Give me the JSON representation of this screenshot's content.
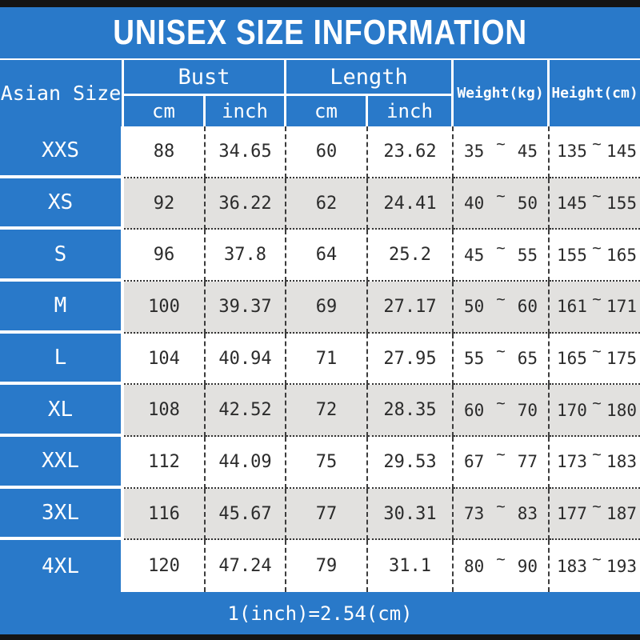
{
  "title": "UNISEX SIZE INFORMATION",
  "footer_note": "1(inch)=2.54(cm)",
  "colors": {
    "accent_blue": "#2979c9",
    "edge_bar_black": "#141414",
    "alt_row_gray": "#e2e1df",
    "text_dark": "#2b2b2b",
    "text_white": "#ffffff"
  },
  "table": {
    "size_column_header": "Asian Size",
    "groups": [
      {
        "label": "Bust",
        "units": [
          "cm",
          "inch"
        ]
      },
      {
        "label": "Length",
        "units": [
          "cm",
          "inch"
        ]
      }
    ],
    "weight_header": "Weight(kg)",
    "height_header": "Height(cm)",
    "range_separator": "~",
    "rows": [
      {
        "size": "XXS",
        "bust_cm": "88",
        "bust_inch": "34.65",
        "length_cm": "60",
        "length_inch": "23.62",
        "weight_min": "35",
        "weight_max": "45",
        "height_min": "135",
        "height_max": "145"
      },
      {
        "size": "XS",
        "bust_cm": "92",
        "bust_inch": "36.22",
        "length_cm": "62",
        "length_inch": "24.41",
        "weight_min": "40",
        "weight_max": "50",
        "height_min": "145",
        "height_max": "155"
      },
      {
        "size": "S",
        "bust_cm": "96",
        "bust_inch": "37.8",
        "length_cm": "64",
        "length_inch": "25.2",
        "weight_min": "45",
        "weight_max": "55",
        "height_min": "155",
        "height_max": "165"
      },
      {
        "size": "M",
        "bust_cm": "100",
        "bust_inch": "39.37",
        "length_cm": "69",
        "length_inch": "27.17",
        "weight_min": "50",
        "weight_max": "60",
        "height_min": "161",
        "height_max": "171"
      },
      {
        "size": "L",
        "bust_cm": "104",
        "bust_inch": "40.94",
        "length_cm": "71",
        "length_inch": "27.95",
        "weight_min": "55",
        "weight_max": "65",
        "height_min": "165",
        "height_max": "175"
      },
      {
        "size": "XL",
        "bust_cm": "108",
        "bust_inch": "42.52",
        "length_cm": "72",
        "length_inch": "28.35",
        "weight_min": "60",
        "weight_max": "70",
        "height_min": "170",
        "height_max": "180"
      },
      {
        "size": "XXL",
        "bust_cm": "112",
        "bust_inch": "44.09",
        "length_cm": "75",
        "length_inch": "29.53",
        "weight_min": "67",
        "weight_max": "77",
        "height_min": "173",
        "height_max": "183"
      },
      {
        "size": "3XL",
        "bust_cm": "116",
        "bust_inch": "45.67",
        "length_cm": "77",
        "length_inch": "30.31",
        "weight_min": "73",
        "weight_max": "83",
        "height_min": "177",
        "height_max": "187"
      },
      {
        "size": "4XL",
        "bust_cm": "120",
        "bust_inch": "47.24",
        "length_cm": "79",
        "length_inch": "31.1",
        "weight_min": "80",
        "weight_max": "90",
        "height_min": "183",
        "height_max": "193"
      }
    ]
  }
}
